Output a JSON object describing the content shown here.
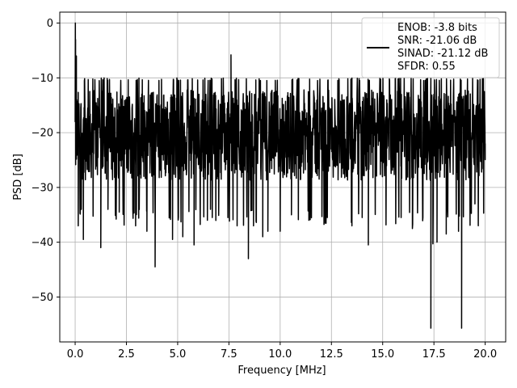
{
  "chart_data": {
    "type": "line",
    "xlabel": "Frequency [MHz]",
    "ylabel": "PSD [dB]",
    "xlim": [
      -0.75,
      21.0
    ],
    "ylim": [
      -58.2,
      2.0
    ],
    "xticks": [
      0.0,
      2.5,
      5.0,
      7.5,
      10.0,
      12.5,
      15.0,
      17.5,
      20.0
    ],
    "xtick_labels": [
      "0.0",
      "2.5",
      "5.0",
      "7.5",
      "10.0",
      "12.5",
      "15.0",
      "17.5",
      "20.0"
    ],
    "yticks": [
      0,
      -10,
      -20,
      -30,
      -40,
      -50
    ],
    "ytick_labels": [
      "0",
      "−10",
      "−20",
      "−30",
      "−40",
      "−50"
    ],
    "grid": true,
    "legend_position": "top-right",
    "line_color": "#000000",
    "series": [
      {
        "name": "ENOB: -3.8 bits\nSNR: -21.06 dB\nSINAD: -21.12 dB\nSFDR: 0.55",
        "description": "dense noise-floor PSD from 0 to 20 MHz, mostly between about -30 and -10 dB",
        "x_range": [
          0.0,
          20.0
        ],
        "typical_range": [
          -32,
          -10
        ],
        "points": [
          [
            0.0,
            -18
          ],
          [
            0.01,
            0.0
          ],
          [
            0.02,
            -3
          ],
          [
            0.04,
            -10
          ],
          [
            0.06,
            -6
          ],
          [
            0.08,
            -14
          ],
          [
            0.1,
            -19
          ],
          [
            0.15,
            -37
          ],
          [
            0.3,
            -34
          ],
          [
            0.4,
            -39.5
          ],
          [
            0.45,
            -10.5
          ],
          [
            1.25,
            -41
          ],
          [
            1.6,
            -34
          ],
          [
            2.15,
            -34.5
          ],
          [
            2.95,
            -37
          ],
          [
            3.5,
            -38
          ],
          [
            3.9,
            -44.5
          ],
          [
            4.75,
            -39.5
          ],
          [
            5.25,
            -39
          ],
          [
            5.8,
            -40.5
          ],
          [
            6.45,
            -36
          ],
          [
            6.6,
            -34
          ],
          [
            7.6,
            -5.8
          ],
          [
            7.9,
            -37
          ],
          [
            8.45,
            -43
          ],
          [
            8.7,
            -37
          ],
          [
            9.15,
            -39
          ],
          [
            9.4,
            -38
          ],
          [
            10.0,
            -38
          ],
          [
            10.55,
            -35
          ],
          [
            11.4,
            -36
          ],
          [
            12.3,
            -35.5
          ],
          [
            13.5,
            -37
          ],
          [
            14.0,
            -35.5
          ],
          [
            14.3,
            -40.5
          ],
          [
            15.9,
            -35.5
          ],
          [
            16.45,
            -37.5
          ],
          [
            17.35,
            -55.7
          ],
          [
            17.45,
            -40.3
          ],
          [
            17.65,
            -40
          ],
          [
            18.1,
            -38.5
          ],
          [
            18.7,
            -38
          ],
          [
            18.85,
            -55.7
          ],
          [
            19.5,
            -33
          ],
          [
            20.0,
            -22
          ]
        ]
      }
    ]
  }
}
